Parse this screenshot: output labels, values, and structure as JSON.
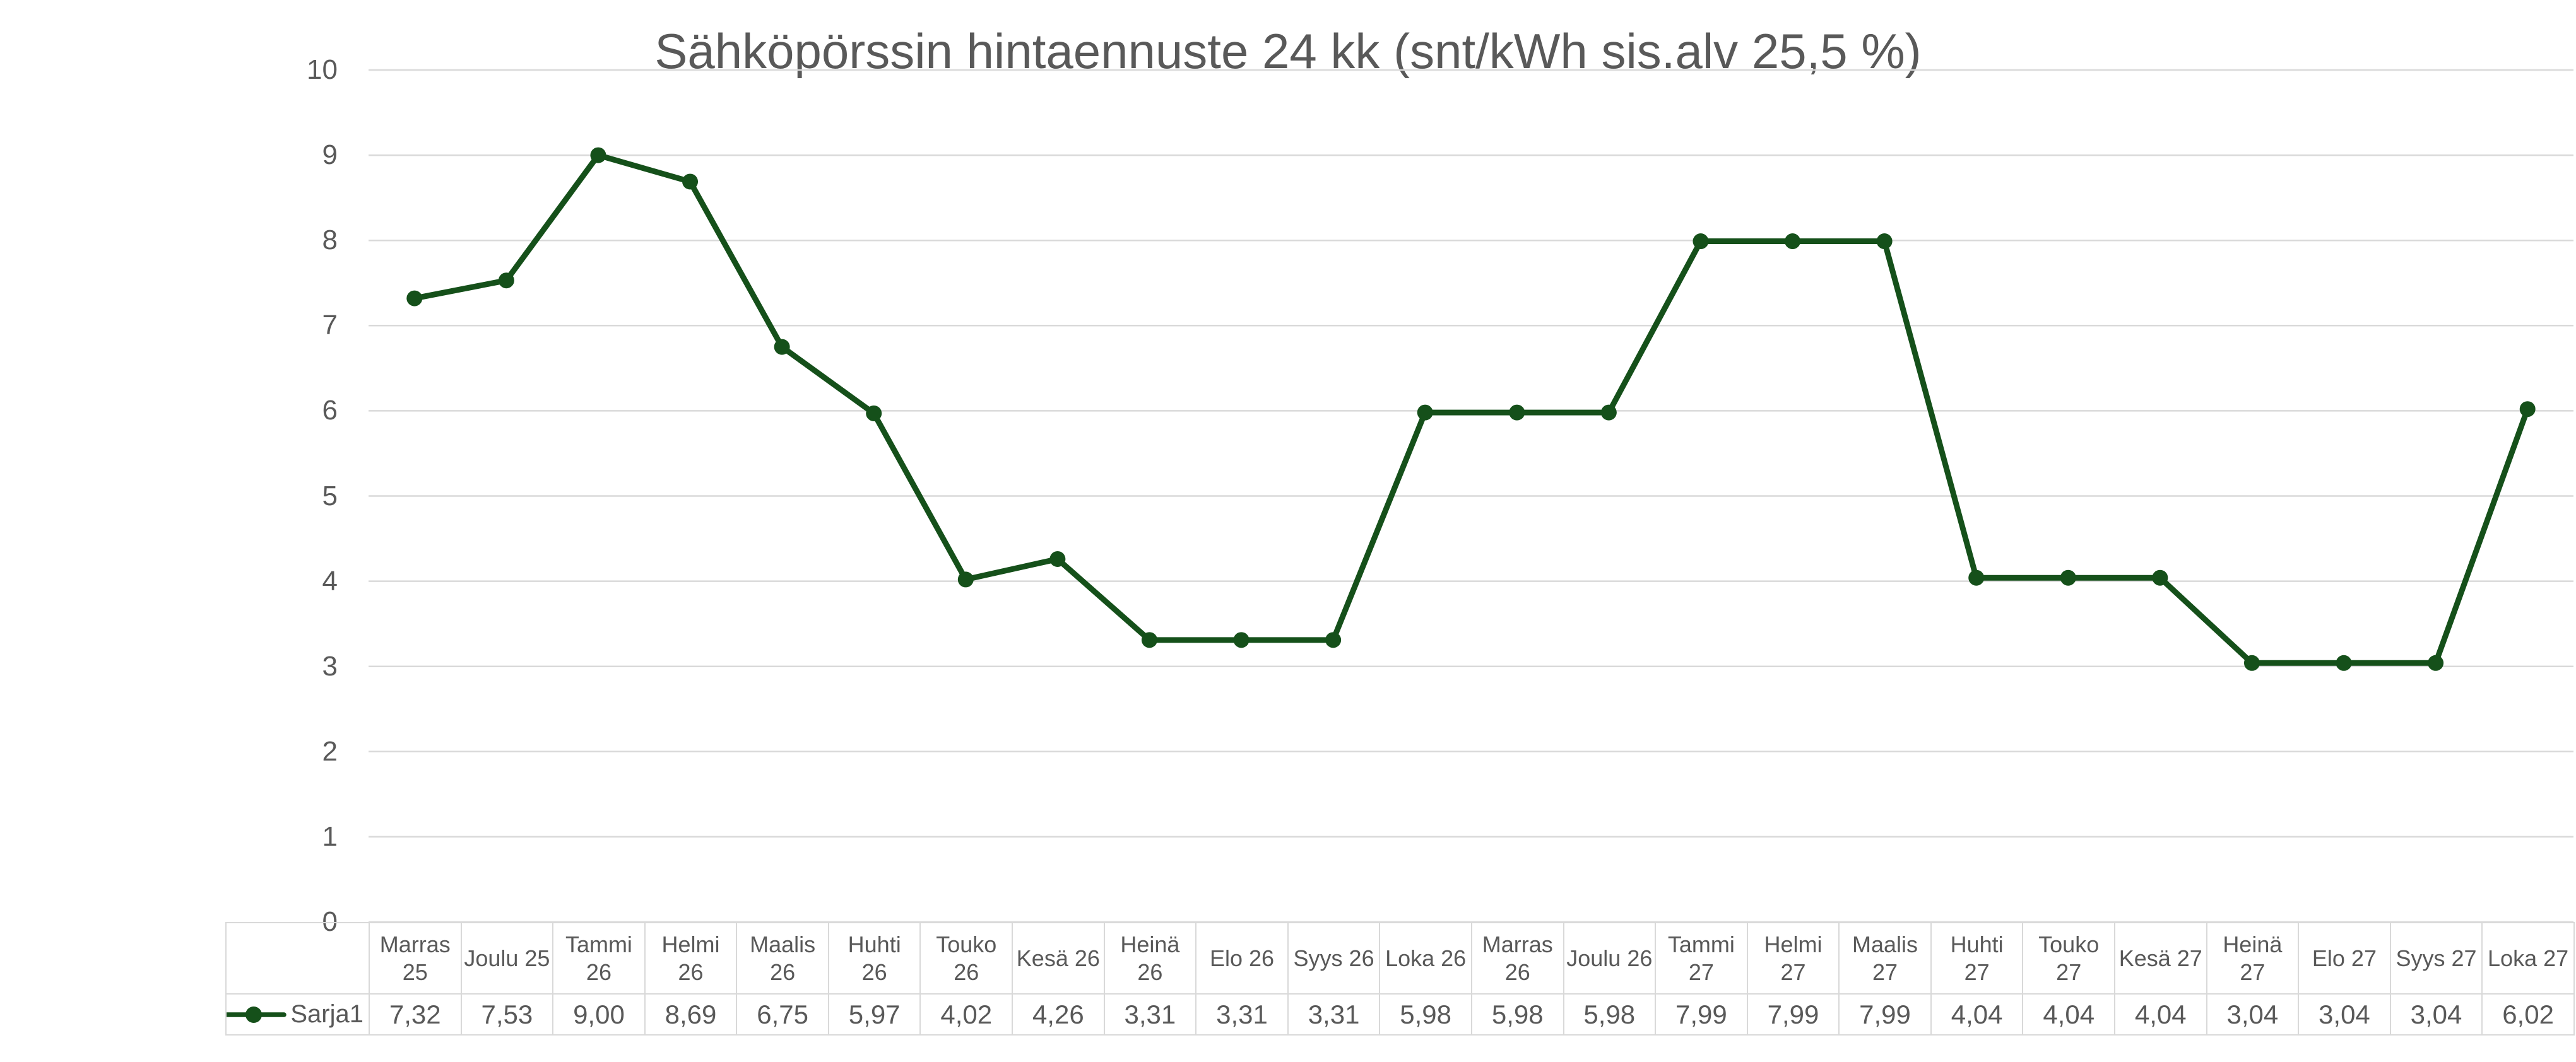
{
  "colors": {
    "series_line": "#15501A",
    "gridline": "#D9D9D9",
    "table_border": "#D9D9D9",
    "text": "#595959",
    "title_text": "#595959",
    "background": "#FFFFFF"
  },
  "chart_data": {
    "type": "line",
    "title": "Sähköpörssin hintaennuste 24 kk (snt/kWh sis.alv 25,5 %)",
    "categories": [
      "Marras 25",
      "Joulu 25",
      "Tammi 26",
      "Helmi 26",
      "Maalis 26",
      "Huhti 26",
      "Touko 26",
      "Kesä 26",
      "Heinä 26",
      "Elo 26",
      "Syys 26",
      "Loka 26",
      "Marras 26",
      "Joulu 26",
      "Tammi 27",
      "Helmi 27",
      "Maalis 27",
      "Huhti 27",
      "Touko 27",
      "Kesä 27",
      "Heinä 27",
      "Elo 27",
      "Syys 27",
      "Loka 27"
    ],
    "categories_display": [
      "Marras\n25",
      "Joulu 25",
      "Tammi\n26",
      "Helmi\n26",
      "Maalis\n26",
      "Huhti\n26",
      "Touko\n26",
      "Kesä 26",
      "Heinä\n26",
      "Elo 26",
      "Syys 26",
      "Loka 26",
      "Marras\n26",
      "Joulu 26",
      "Tammi\n27",
      "Helmi\n27",
      "Maalis\n27",
      "Huhti\n27",
      "Touko\n27",
      "Kesä 27",
      "Heinä\n27",
      "Elo 27",
      "Syys 27",
      "Loka 27"
    ],
    "series": [
      {
        "name": "Sarja1",
        "values": [
          7.32,
          7.53,
          9.0,
          8.69,
          6.75,
          5.97,
          4.02,
          4.26,
          3.31,
          3.31,
          3.31,
          5.98,
          5.98,
          5.98,
          7.99,
          7.99,
          7.99,
          4.04,
          4.04,
          4.04,
          3.04,
          3.04,
          3.04,
          6.02
        ],
        "values_display": [
          "7,32",
          "7,53",
          "9,00",
          "8,69",
          "6,75",
          "5,97",
          "4,02",
          "4,26",
          "3,31",
          "3,31",
          "3,31",
          "5,98",
          "5,98",
          "5,98",
          "7,99",
          "7,99",
          "7,99",
          "4,04",
          "4,04",
          "4,04",
          "3,04",
          "3,04",
          "3,04",
          "6,02"
        ]
      }
    ],
    "xlabel": "",
    "ylabel": "",
    "ylim": [
      0,
      10
    ],
    "yticks": [
      0,
      1,
      2,
      3,
      4,
      5,
      6,
      7,
      8,
      9,
      10
    ],
    "grid": true,
    "legend_position": "data-table-left",
    "data_table_shown": true,
    "marker": "circle"
  }
}
